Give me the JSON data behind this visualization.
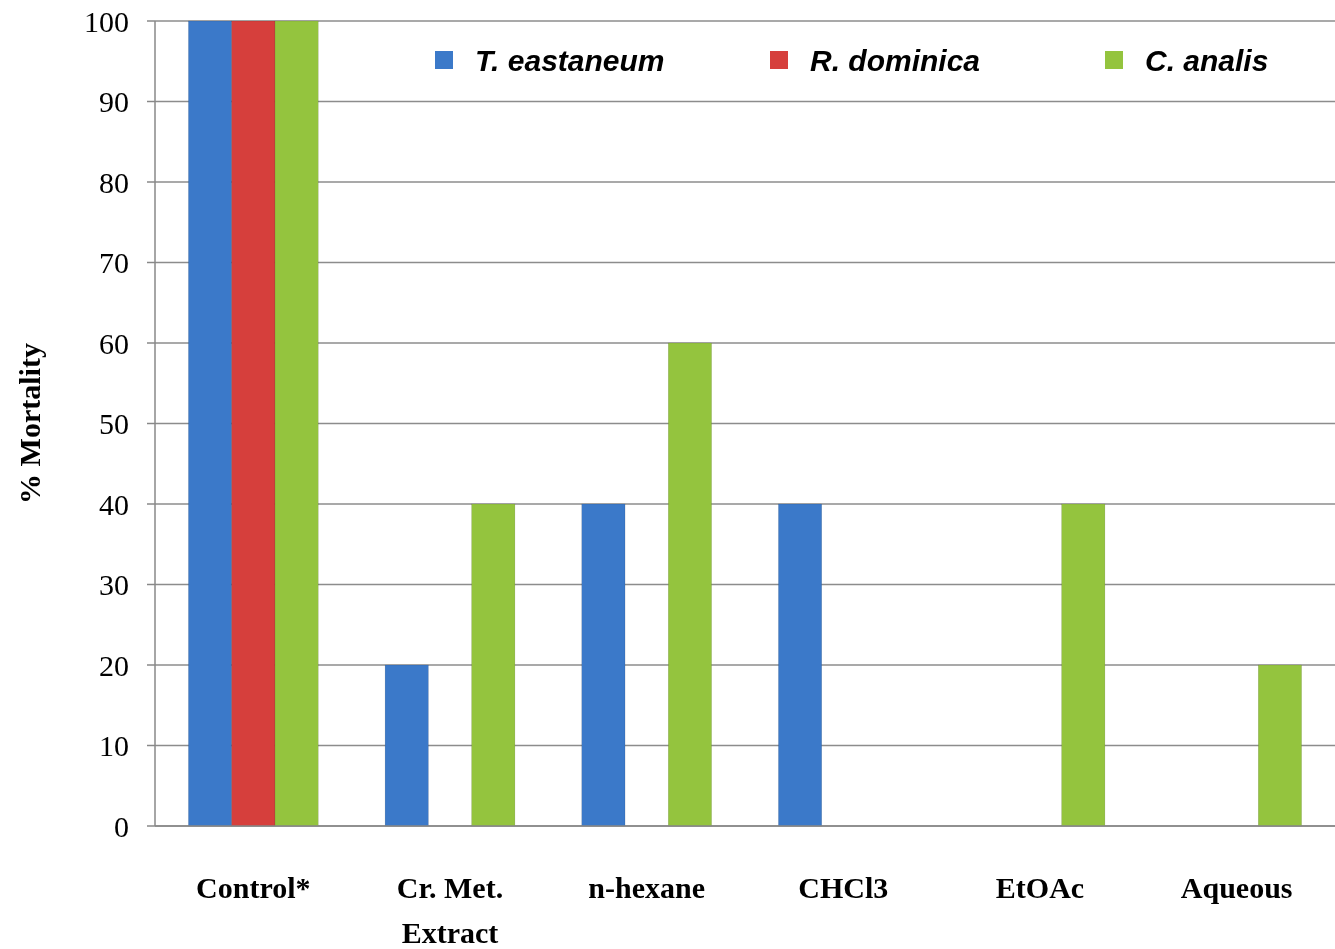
{
  "chart_data": {
    "type": "bar",
    "ylabel": "% Mortality",
    "categories": [
      "Control*",
      "Cr. Met. Extract",
      "n-hexane",
      "CHCl3",
      "EtOAc",
      "Aqueous"
    ],
    "series": [
      {
        "name": "T. eastaneum",
        "color": "#3b79c9",
        "values": [
          100,
          20,
          40,
          40,
          0,
          0
        ]
      },
      {
        "name": "R. dominica",
        "color": "#d63f3c",
        "values": [
          100,
          0,
          0,
          0,
          0,
          0
        ]
      },
      {
        "name": "C. analis",
        "color": "#94c43e",
        "values": [
          100,
          40,
          60,
          0,
          40,
          20
        ]
      }
    ],
    "ylim": [
      0,
      100
    ],
    "yticks": [
      0,
      10,
      20,
      30,
      40,
      50,
      60,
      70,
      80,
      90,
      100
    ],
    "grid": "y",
    "legend": "top right"
  }
}
